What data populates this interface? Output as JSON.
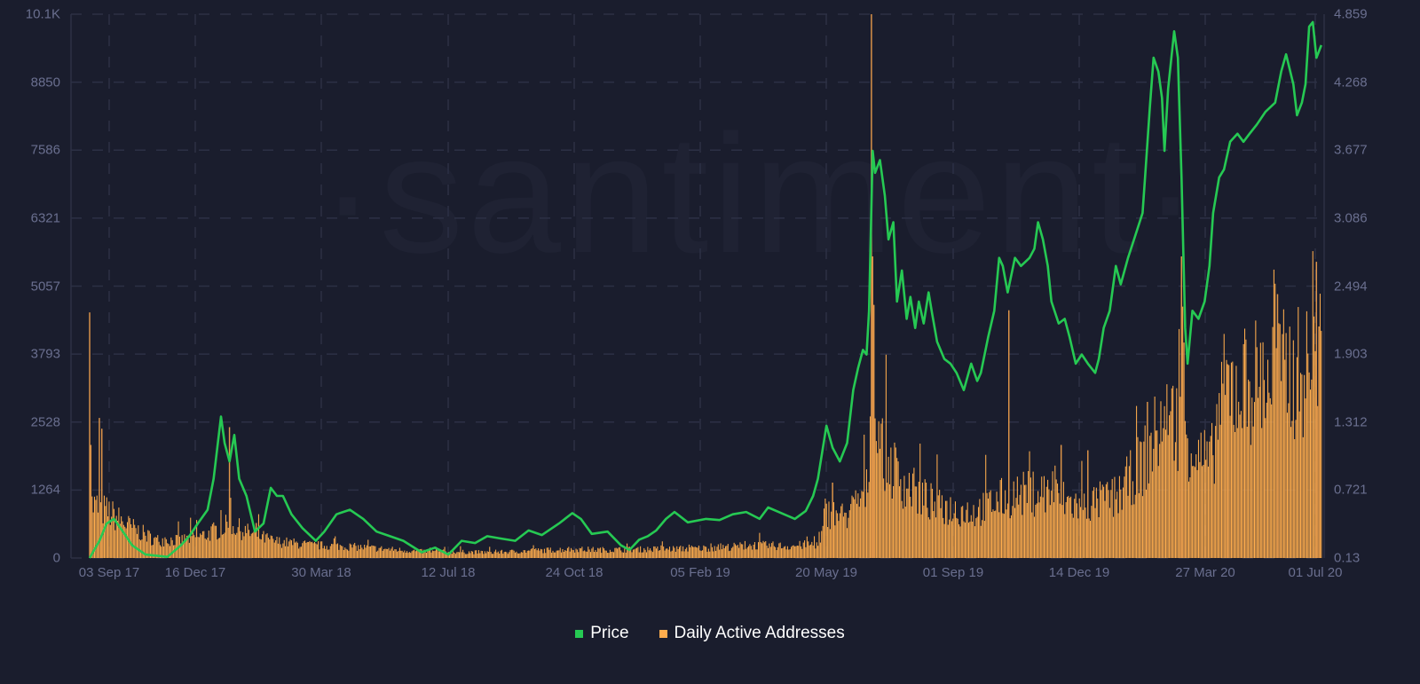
{
  "watermark": "·santiment·",
  "legend": [
    {
      "label": "Price",
      "color": "#26c953"
    },
    {
      "label": "Daily Active Addresses",
      "color": "#ffad4d"
    }
  ],
  "chart_data": {
    "type": "bar+line",
    "title": "",
    "xlabel": "",
    "ylabel_left": "Daily Active Addresses",
    "ylabel_right": "Price",
    "x_ticks": [
      "03 Sep 17",
      "16 Dec 17",
      "30 Mar 18",
      "12 Jul 18",
      "24 Oct 18",
      "05 Feb 19",
      "20 May 19",
      "01 Sep 19",
      "14 Dec 19",
      "27 Mar 20",
      "01 Jul 20"
    ],
    "y_left_ticks": [
      "0",
      "1264",
      "2528",
      "3793",
      "5057",
      "6321",
      "7586",
      "8850",
      "10.1K"
    ],
    "y_right_ticks": [
      "0.13",
      "0.721",
      "1.312",
      "1.903",
      "2.494",
      "3.086",
      "3.677",
      "4.268",
      "4.859"
    ],
    "y_left_range": [
      0,
      10100
    ],
    "y_right_range": [
      0.13,
      4.859
    ],
    "x_range": [
      "~17 Aug 17",
      "~08 Jul 20"
    ],
    "grid": true,
    "legend_position": "bottom-center",
    "series": [
      {
        "name": "Price",
        "type": "line",
        "axis": "right",
        "color": "#26c953",
        "points_date_value": [
          [
            "2017-08-17",
            0.13
          ],
          [
            "2017-08-25",
            0.28
          ],
          [
            "2017-08-31",
            0.43
          ],
          [
            "2017-09-06",
            0.47
          ],
          [
            "2017-09-14",
            0.35
          ],
          [
            "2017-09-21",
            0.24
          ],
          [
            "2017-10-02",
            0.16
          ],
          [
            "2017-10-20",
            0.14
          ],
          [
            "2017-10-31",
            0.24
          ],
          [
            "2017-11-07",
            0.32
          ],
          [
            "2017-11-14",
            0.43
          ],
          [
            "2017-11-22",
            0.55
          ],
          [
            "2017-11-27",
            0.82
          ],
          [
            "2017-12-03",
            1.36
          ],
          [
            "2017-12-06",
            1.13
          ],
          [
            "2017-12-10",
            0.97
          ],
          [
            "2017-12-14",
            1.2
          ],
          [
            "2017-12-18",
            0.82
          ],
          [
            "2017-12-24",
            0.67
          ],
          [
            "2017-12-31",
            0.36
          ],
          [
            "2018-01-07",
            0.43
          ],
          [
            "2018-01-13",
            0.74
          ],
          [
            "2018-01-18",
            0.67
          ],
          [
            "2018-01-23",
            0.67
          ],
          [
            "2018-01-30",
            0.51
          ],
          [
            "2018-02-08",
            0.39
          ],
          [
            "2018-02-19",
            0.28
          ],
          [
            "2018-02-26",
            0.36
          ],
          [
            "2018-03-08",
            0.51
          ],
          [
            "2018-03-19",
            0.55
          ],
          [
            "2018-03-30",
            0.47
          ],
          [
            "2018-04-10",
            0.36
          ],
          [
            "2018-04-21",
            0.32
          ],
          [
            "2018-05-02",
            0.28
          ],
          [
            "2018-05-17",
            0.18
          ],
          [
            "2018-05-28",
            0.22
          ],
          [
            "2018-06-08",
            0.16
          ],
          [
            "2018-06-19",
            0.28
          ],
          [
            "2018-06-30",
            0.26
          ],
          [
            "2018-07-10",
            0.32
          ],
          [
            "2018-07-21",
            0.3
          ],
          [
            "2018-08-02",
            0.28
          ],
          [
            "2018-08-13",
            0.37
          ],
          [
            "2018-08-24",
            0.33
          ],
          [
            "2018-09-07",
            0.43
          ],
          [
            "2018-09-18",
            0.52
          ],
          [
            "2018-09-25",
            0.47
          ],
          [
            "2018-10-04",
            0.34
          ],
          [
            "2018-10-17",
            0.36
          ],
          [
            "2018-10-28",
            0.24
          ],
          [
            "2018-11-04",
            0.2
          ],
          [
            "2018-11-12",
            0.29
          ],
          [
            "2018-11-19",
            0.32
          ],
          [
            "2018-11-26",
            0.37
          ],
          [
            "2018-12-04",
            0.47
          ],
          [
            "2018-12-11",
            0.53
          ],
          [
            "2018-12-22",
            0.44
          ],
          [
            "2019-01-06",
            0.47
          ],
          [
            "2019-01-17",
            0.46
          ],
          [
            "2019-01-28",
            0.51
          ],
          [
            "2019-02-08",
            0.53
          ],
          [
            "2019-02-19",
            0.47
          ],
          [
            "2019-02-26",
            0.57
          ],
          [
            "2019-03-09",
            0.52
          ],
          [
            "2019-03-20",
            0.47
          ],
          [
            "2019-03-29",
            0.54
          ],
          [
            "2019-04-04",
            0.67
          ],
          [
            "2019-04-08",
            0.82
          ],
          [
            "2019-04-15",
            1.28
          ],
          [
            "2019-04-20",
            1.09
          ],
          [
            "2019-04-26",
            0.97
          ],
          [
            "2019-05-02",
            1.13
          ],
          [
            "2019-05-07",
            1.59
          ],
          [
            "2019-05-11",
            1.78
          ],
          [
            "2019-05-15",
            1.94
          ],
          [
            "2019-05-18",
            1.9
          ],
          [
            "2019-05-20",
            2.28
          ],
          [
            "2019-05-23",
            3.67
          ],
          [
            "2019-05-25",
            3.48
          ],
          [
            "2019-05-29",
            3.59
          ],
          [
            "2019-06-02",
            3.28
          ],
          [
            "2019-06-05",
            2.9
          ],
          [
            "2019-06-09",
            3.05
          ],
          [
            "2019-06-12",
            2.36
          ],
          [
            "2019-06-16",
            2.63
          ],
          [
            "2019-06-20",
            2.21
          ],
          [
            "2019-06-23",
            2.4
          ],
          [
            "2019-06-27",
            2.13
          ],
          [
            "2019-06-30",
            2.36
          ],
          [
            "2019-07-04",
            2.17
          ],
          [
            "2019-07-08",
            2.44
          ],
          [
            "2019-07-11",
            2.25
          ],
          [
            "2019-07-15",
            2.01
          ],
          [
            "2019-07-21",
            1.86
          ],
          [
            "2019-07-26",
            1.82
          ],
          [
            "2019-07-31",
            1.74
          ],
          [
            "2019-08-06",
            1.59
          ],
          [
            "2019-08-12",
            1.82
          ],
          [
            "2019-08-17",
            1.67
          ],
          [
            "2019-08-20",
            1.74
          ],
          [
            "2019-08-26",
            2.05
          ],
          [
            "2019-08-31",
            2.28
          ],
          [
            "2019-09-04",
            2.74
          ],
          [
            "2019-09-07",
            2.67
          ],
          [
            "2019-09-11",
            2.44
          ],
          [
            "2019-09-17",
            2.74
          ],
          [
            "2019-09-22",
            2.67
          ],
          [
            "2019-09-29",
            2.74
          ],
          [
            "2019-10-03",
            2.82
          ],
          [
            "2019-10-06",
            3.05
          ],
          [
            "2019-10-10",
            2.9
          ],
          [
            "2019-10-14",
            2.67
          ],
          [
            "2019-10-17",
            2.36
          ],
          [
            "2019-10-23",
            2.17
          ],
          [
            "2019-10-28",
            2.21
          ],
          [
            "2019-11-01",
            2.05
          ],
          [
            "2019-11-06",
            1.82
          ],
          [
            "2019-11-11",
            1.9
          ],
          [
            "2019-11-16",
            1.82
          ],
          [
            "2019-11-22",
            1.74
          ],
          [
            "2019-11-25",
            1.86
          ],
          [
            "2019-11-29",
            2.13
          ],
          [
            "2019-12-04",
            2.28
          ],
          [
            "2019-12-09",
            2.67
          ],
          [
            "2019-12-13",
            2.51
          ],
          [
            "2019-12-19",
            2.74
          ],
          [
            "2019-12-24",
            2.9
          ],
          [
            "2019-12-31",
            3.13
          ],
          [
            "2020-01-02",
            3.44
          ],
          [
            "2020-01-06",
            4.05
          ],
          [
            "2020-01-09",
            4.48
          ],
          [
            "2020-01-13",
            4.36
          ],
          [
            "2020-01-16",
            4.13
          ],
          [
            "2020-01-18",
            3.67
          ],
          [
            "2020-01-21",
            4.21
          ],
          [
            "2020-01-26",
            4.71
          ],
          [
            "2020-01-29",
            4.48
          ],
          [
            "2020-02-01",
            3.44
          ],
          [
            "2020-02-04",
            2.13
          ],
          [
            "2020-02-06",
            1.82
          ],
          [
            "2020-02-10",
            2.28
          ],
          [
            "2020-02-15",
            2.21
          ],
          [
            "2020-02-20",
            2.36
          ],
          [
            "2020-02-24",
            2.67
          ],
          [
            "2020-02-27",
            3.13
          ],
          [
            "2020-03-03",
            3.44
          ],
          [
            "2020-03-07",
            3.51
          ],
          [
            "2020-03-12",
            3.75
          ],
          [
            "2020-03-18",
            3.82
          ],
          [
            "2020-03-23",
            3.75
          ],
          [
            "2020-03-28",
            3.82
          ],
          [
            "2020-04-03",
            3.9
          ],
          [
            "2020-04-10",
            4.01
          ],
          [
            "2020-04-18",
            4.09
          ],
          [
            "2020-04-23",
            4.36
          ],
          [
            "2020-04-27",
            4.51
          ],
          [
            "2020-05-03",
            4.25
          ],
          [
            "2020-05-06",
            3.98
          ],
          [
            "2020-05-10",
            4.09
          ],
          [
            "2020-05-13",
            4.25
          ],
          [
            "2020-05-16",
            4.75
          ],
          [
            "2020-05-19",
            4.79
          ],
          [
            "2020-05-22",
            4.48
          ],
          [
            "2020-05-26",
            4.59
          ]
        ]
      },
      {
        "name": "Daily Active Addresses",
        "type": "bar",
        "axis": "left",
        "color": "#ffad4d",
        "envelope_date_value": [
          [
            "2017-08-17",
            1050
          ],
          [
            "2017-09-01",
            900
          ],
          [
            "2017-09-20",
            600
          ],
          [
            "2017-10-10",
            350
          ],
          [
            "2017-11-01",
            350
          ],
          [
            "2017-11-20",
            450
          ],
          [
            "2017-12-10",
            650
          ],
          [
            "2017-12-25",
            500
          ],
          [
            "2018-01-15",
            330
          ],
          [
            "2018-02-15",
            250
          ],
          [
            "2018-03-15",
            230
          ],
          [
            "2018-04-15",
            180
          ],
          [
            "2018-05-15",
            130
          ],
          [
            "2018-06-15",
            120
          ],
          [
            "2018-07-15",
            110
          ],
          [
            "2018-08-15",
            140
          ],
          [
            "2018-09-15",
            170
          ],
          [
            "2018-10-15",
            160
          ],
          [
            "2018-11-15",
            170
          ],
          [
            "2018-12-15",
            180
          ],
          [
            "2019-01-15",
            200
          ],
          [
            "2019-02-15",
            250
          ],
          [
            "2019-03-15",
            230
          ],
          [
            "2019-04-10",
            280
          ],
          [
            "2019-04-14",
            900
          ],
          [
            "2019-05-01",
            800
          ],
          [
            "2019-05-18",
            1300
          ],
          [
            "2019-05-22",
            2800
          ],
          [
            "2019-06-01",
            2000
          ],
          [
            "2019-06-20",
            1400
          ],
          [
            "2019-07-15",
            1000
          ],
          [
            "2019-08-15",
            900
          ],
          [
            "2019-09-10",
            1200
          ],
          [
            "2019-10-10",
            1300
          ],
          [
            "2019-11-10",
            1000
          ],
          [
            "2019-12-10",
            1200
          ],
          [
            "2020-01-01",
            1900
          ],
          [
            "2020-01-15",
            2600
          ],
          [
            "2020-01-30",
            2700
          ],
          [
            "2020-02-15",
            2000
          ],
          [
            "2020-02-25",
            1800
          ],
          [
            "2020-03-05",
            3200
          ],
          [
            "2020-04-01",
            3500
          ],
          [
            "2020-05-01",
            3600
          ],
          [
            "2020-05-20",
            3700
          ],
          [
            "2020-05-29",
            3100
          ]
        ],
        "spikes_date_value": [
          [
            "2017-08-17",
            4560
          ],
          [
            "2017-08-18",
            2100
          ],
          [
            "2017-08-25",
            2600
          ],
          [
            "2017-08-27",
            2400
          ],
          [
            "2017-12-10",
            2430
          ],
          [
            "2018-01-01",
            650
          ],
          [
            "2019-04-20",
            1400
          ],
          [
            "2019-05-22",
            10100
          ],
          [
            "2019-05-23",
            5600
          ],
          [
            "2019-05-24",
            4700
          ],
          [
            "2019-09-12",
            4600
          ],
          [
            "2019-10-25",
            2100
          ],
          [
            "2019-11-16",
            2000
          ],
          [
            "2020-01-04",
            2900
          ],
          [
            "2020-02-01",
            5600
          ],
          [
            "2020-02-03",
            4000
          ],
          [
            "2020-03-10",
            3600
          ],
          [
            "2020-04-20",
            4900
          ],
          [
            "2020-05-22",
            5500
          ],
          [
            "2020-05-24",
            4300
          ]
        ]
      }
    ]
  }
}
